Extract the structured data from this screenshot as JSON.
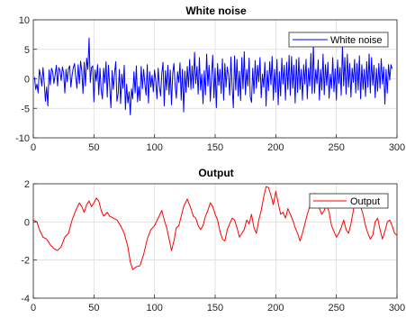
{
  "chart_data": [
    {
      "type": "line",
      "title": "White noise",
      "xlabel": "",
      "ylabel": "",
      "xlim": [
        0,
        300
      ],
      "ylim": [
        -10,
        10
      ],
      "xticks": [
        "0",
        "50",
        "100",
        "150",
        "200",
        "250",
        "300"
      ],
      "yticks": [
        "10",
        "5",
        "0",
        "-5",
        "-10"
      ],
      "grid": true,
      "legend_position": "top-right",
      "series": [
        {
          "name": "White noise",
          "color": "#0000ff",
          "x_start": 1,
          "x_step": 1,
          "values": [
            0.3,
            -1.8,
            -0.9,
            -2.4,
            1.6,
            0.4,
            -1.2,
            1.9,
            -0.6,
            -3.8,
            -1.4,
            -4.6,
            1.5,
            -1.0,
            1.8,
            1.2,
            -0.8,
            0.7,
            2.3,
            -1.2,
            1.9,
            1.4,
            -0.3,
            2.0,
            1.1,
            -2.4,
            1.6,
            -0.5,
            1.7,
            2.2,
            -1.4,
            0.6,
            1.9,
            2.6,
            0.3,
            -1.6,
            2.4,
            -0.8,
            3.0,
            1.3,
            -2.5,
            2.8,
            -1.2,
            3.5,
            1.6,
            6.9,
            -0.6,
            1.9,
            2.2,
            -3.9,
            1.5,
            -0.4,
            2.4,
            -2.7,
            1.8,
            -1.9,
            -3.4,
            1.8,
            -0.7,
            2.9,
            -3.1,
            2.3,
            -1.2,
            -4.9,
            1.4,
            -1.8,
            0.9,
            2.9,
            -3.8,
            -2.5,
            1.6,
            -4.2,
            0.8,
            -1.6,
            2.3,
            -5.2,
            -0.9,
            -4.1,
            -2.2,
            -6.1,
            -1.7,
            -3.4,
            1.2,
            -2.4,
            2.2,
            -3.9,
            -1.3,
            -3.7,
            2.1,
            -1.7,
            1.6,
            -0.8,
            -2.8,
            2.4,
            -4.1,
            1.2,
            -1.4,
            0.6,
            -2.2,
            1.5,
            -0.3,
            -3.4,
            1.8,
            -1.2,
            -2.9,
            0.9,
            2.8,
            -4.6,
            1.4,
            -1.9,
            2.3,
            -2.7,
            1.5,
            -4.4,
            0.9,
            2.6,
            -1.2,
            -3.3,
            1.2,
            -0.6,
            2.7,
            -3.6,
            1.6,
            -5.6,
            1.3,
            -2.3,
            2.1,
            -1.4,
            3.3,
            -1.8,
            2.2,
            -1.6,
            4.5,
            -0.8,
            2.1,
            -2.6,
            3.6,
            -1.9,
            0.8,
            -4.2,
            1.4,
            -2.7,
            4.2,
            -1.2,
            2.3,
            -3.8,
            0.6,
            4.0,
            -3.2,
            1.8,
            -4.9,
            2.6,
            -1.1,
            1.6,
            -2.5,
            3.4,
            -3.6,
            2.6,
            -1.4,
            2.0,
            0.6,
            -2.8,
            3.7,
            -1.3,
            -4.9,
            3.9,
            -1.9,
            3.3,
            -2.9,
            1.3,
            -3.7,
            3.6,
            -1.7,
            4.6,
            -2.7,
            1.6,
            -1.2,
            3.5,
            -3.1,
            -4.0,
            1.8,
            -2.5,
            3.1,
            -1.6,
            2.3,
            -0.5,
            3.6,
            -3.2,
            0.8,
            -1.4,
            2.8,
            -4.6,
            1.4,
            -2.0,
            2.9,
            -1.0,
            3.8,
            -3.6,
            1.6,
            -2.3,
            3.3,
            -4.4,
            1.2,
            -2.9,
            3.5,
            -0.9,
            2.3,
            -3.6,
            2.8,
            -1.8,
            4.0,
            -2.8,
            3.8,
            -1.6,
            2.3,
            -4.1,
            3.3,
            -2.3,
            3.6,
            -1.8,
            1.6,
            -3.6,
            2.4,
            -0.9,
            3.3,
            -3.4,
            1.8,
            -1.2,
            4.3,
            -2.5,
            5.9,
            -2.4,
            1.6,
            -0.8,
            3.2,
            -3.6,
            1.6,
            -1.9,
            4.2,
            -2.7,
            2.4,
            -1.1,
            2.8,
            -3.3,
            0.8,
            -1.6,
            3.6,
            -2.2,
            1.7,
            -3.6,
            3.2,
            -0.8,
            1.9,
            -2.8,
            5.6,
            -1.2,
            3.6,
            -2.6,
            4.2,
            -1.4,
            2.6,
            -3.1,
            1.8,
            -0.6,
            3.3,
            -2.4,
            2.6,
            -1.9,
            3.9,
            -3.4,
            2.4,
            -1.8,
            1.6,
            -3.0,
            2.9,
            -1.4,
            4.2,
            -2.4,
            3.6,
            -1.1,
            2.3,
            -3.2,
            1.8,
            -2.1,
            2.6,
            -1.6,
            3.4,
            -0.9,
            2.0,
            -4.3,
            1.6,
            -2.4,
            2.4,
            -0.2,
            2.4,
            1.7
          ]
        }
      ]
    },
    {
      "type": "line",
      "title": "Output",
      "xlabel": "",
      "ylabel": "",
      "xlim": [
        0,
        300
      ],
      "ylim": [
        -4,
        2
      ],
      "xticks": [
        "0",
        "50",
        "100",
        "150",
        "200",
        "250",
        "300"
      ],
      "yticks": [
        "2",
        "0",
        "-2",
        "-4"
      ],
      "grid": true,
      "legend_position": "top-right",
      "series": [
        {
          "name": "Output",
          "color": "#ff0000",
          "points": [
            [
              0,
              0.1
            ],
            [
              3,
              0
            ],
            [
              5,
              -0.4
            ],
            [
              8,
              -0.8
            ],
            [
              11,
              -0.9
            ],
            [
              14,
              -1.2
            ],
            [
              17,
              -1.4
            ],
            [
              20,
              -1.5
            ],
            [
              23,
              -1.3
            ],
            [
              26,
              -0.8
            ],
            [
              29,
              -0.6
            ],
            [
              32,
              0.1
            ],
            [
              35,
              0.6
            ],
            [
              38,
              1.0
            ],
            [
              40,
              0.8
            ],
            [
              42,
              0.5
            ],
            [
              44,
              0.9
            ],
            [
              46,
              1.1
            ],
            [
              48,
              0.8
            ],
            [
              50,
              1.0
            ],
            [
              52,
              1.25
            ],
            [
              54,
              1.1
            ],
            [
              56,
              0.6
            ],
            [
              58,
              0.3
            ],
            [
              61,
              0.5
            ],
            [
              63,
              0.3
            ],
            [
              66,
              0.2
            ],
            [
              69,
              0.1
            ],
            [
              72,
              -0.2
            ],
            [
              75,
              -0.6
            ],
            [
              78,
              -1.3
            ],
            [
              80,
              -2.1
            ],
            [
              82,
              -2.5
            ],
            [
              85,
              -2.35
            ],
            [
              88,
              -2.3
            ],
            [
              91,
              -1.7
            ],
            [
              94,
              -0.9
            ],
            [
              97,
              -0.4
            ],
            [
              100,
              -0.2
            ],
            [
              103,
              0.2
            ],
            [
              106,
              0.6
            ],
            [
              108,
              0.1
            ],
            [
              110,
              -0.3
            ],
            [
              112,
              -0.9
            ],
            [
              114,
              -1.5
            ],
            [
              116,
              -1.0
            ],
            [
              118,
              -0.3
            ],
            [
              120,
              -0.2
            ],
            [
              122,
              0.3
            ],
            [
              124,
              0.8
            ],
            [
              127,
              1.2
            ],
            [
              130,
              0.7
            ],
            [
              132,
              0.3
            ],
            [
              134,
              0.2
            ],
            [
              136,
              -0.2
            ],
            [
              138,
              -0.4
            ],
            [
              140,
              -0.2
            ],
            [
              142,
              0.3
            ],
            [
              144,
              0.6
            ],
            [
              146,
              1.0
            ],
            [
              148,
              0.8
            ],
            [
              150,
              0.4
            ],
            [
              152,
              0.1
            ],
            [
              154,
              -0.5
            ],
            [
              156,
              -0.9
            ],
            [
              158,
              -1.0
            ],
            [
              160,
              -0.4
            ],
            [
              162,
              -0.1
            ],
            [
              164,
              0.2
            ],
            [
              166,
              0.1
            ],
            [
              168,
              -0.3
            ],
            [
              170,
              -0.8
            ],
            [
              172,
              -0.6
            ],
            [
              174,
              -0.4
            ],
            [
              176,
              0.1
            ],
            [
              178,
              -0.1
            ],
            [
              180,
              0.4
            ],
            [
              182,
              -0.3
            ],
            [
              184,
              -0.6
            ],
            [
              186,
              0.1
            ],
            [
              188,
              0.6
            ],
            [
              190,
              1.3
            ],
            [
              192,
              1.85
            ],
            [
              194,
              1.8
            ],
            [
              196,
              1.4
            ],
            [
              198,
              0.9
            ],
            [
              200,
              1.6
            ],
            [
              202,
              1.0
            ],
            [
              204,
              0.4
            ],
            [
              206,
              0.5
            ],
            [
              208,
              0.2
            ],
            [
              210,
              0.7
            ],
            [
              212,
              0.4
            ],
            [
              214,
              0.1
            ],
            [
              216,
              -0.3
            ],
            [
              218,
              -0.6
            ],
            [
              220,
              -1.0
            ],
            [
              222,
              -0.6
            ],
            [
              224,
              -0.1
            ],
            [
              226,
              0.4
            ],
            [
              228,
              0.8
            ],
            [
              230,
              1.1
            ],
            [
              232,
              1.5
            ],
            [
              234,
              1.4
            ],
            [
              236,
              0.7
            ],
            [
              238,
              0.4
            ],
            [
              240,
              0.6
            ],
            [
              242,
              0.9
            ],
            [
              244,
              0.5
            ],
            [
              246,
              -0.2
            ],
            [
              248,
              -0.5
            ],
            [
              250,
              -0.8
            ],
            [
              252,
              -0.6
            ],
            [
              254,
              -0.3
            ],
            [
              256,
              0.1
            ],
            [
              258,
              -0.4
            ],
            [
              260,
              -0.6
            ],
            [
              262,
              -0.1
            ],
            [
              264,
              0.6
            ],
            [
              266,
              1.2
            ],
            [
              268,
              1.3
            ],
            [
              270,
              0.8
            ],
            [
              272,
              0.4
            ],
            [
              274,
              -0.2
            ],
            [
              276,
              -0.6
            ],
            [
              278,
              -0.9
            ],
            [
              280,
              -0.7
            ],
            [
              282,
              0.0
            ],
            [
              284,
              0.2
            ],
            [
              286,
              -0.4
            ],
            [
              288,
              -0.9
            ],
            [
              290,
              -0.5
            ],
            [
              292,
              0.0
            ],
            [
              294,
              0.1
            ],
            [
              296,
              -0.2
            ],
            [
              298,
              -0.6
            ],
            [
              300,
              -0.7
            ]
          ]
        }
      ]
    }
  ]
}
